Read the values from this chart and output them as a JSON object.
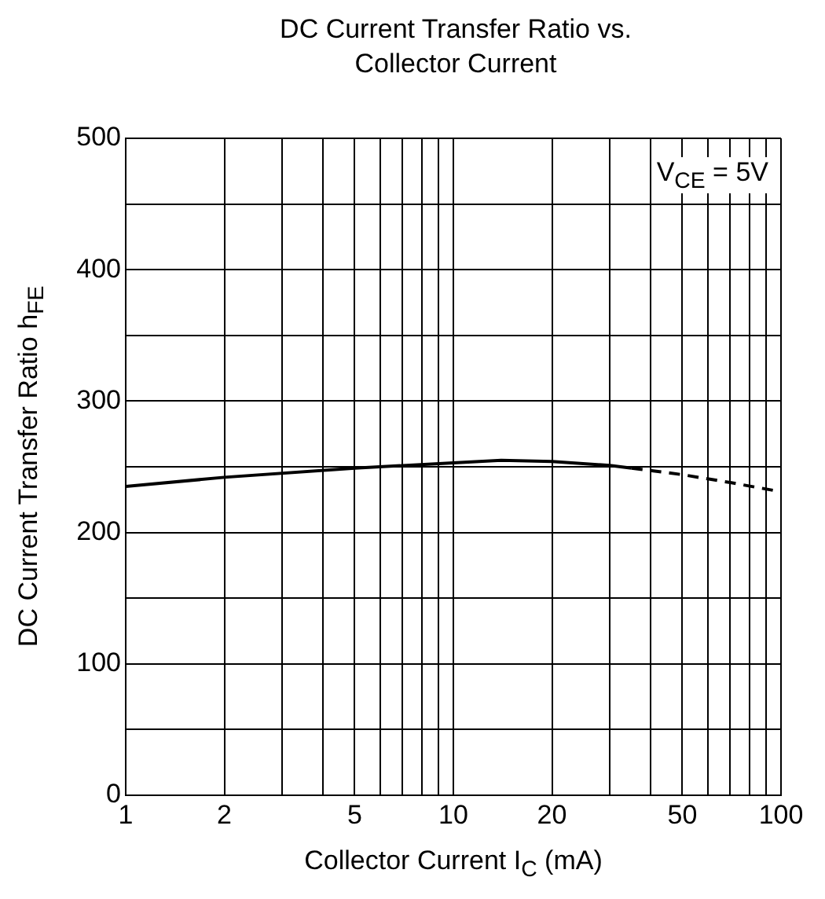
{
  "chart_data": {
    "type": "line",
    "title": "DC Current Transfer Ratio vs. Collector Current",
    "xlabel": "Collector Current  I$_{C}$ (mA)",
    "ylabel": "DC Current Transfer Ratio  h$_{FE}$",
    "annotations": [
      "V$_{CE}$ = 5V"
    ],
    "log": "x",
    "grid": true,
    "marker": "none",
    "xlim": [
      1,
      100
    ],
    "xticks": [
      1,
      2,
      {
        "value": 3,
        "label": null
      },
      {
        "value": 4,
        "label": null
      },
      5,
      {
        "value": 6,
        "label": null
      },
      {
        "value": 7,
        "label": null
      },
      {
        "value": 8,
        "label": null
      },
      {
        "value": 9,
        "label": null
      },
      10,
      20,
      {
        "value": 30,
        "label": null
      },
      {
        "value": 40,
        "label": null
      },
      50,
      {
        "value": 60,
        "label": null
      },
      {
        "value": 70,
        "label": null
      },
      {
        "value": 80,
        "label": null
      },
      {
        "value": 90,
        "label": null
      },
      100
    ],
    "ylim": [
      0,
      500
    ],
    "yticks": [
      0,
      {
        "value": 50,
        "label": null
      },
      100,
      {
        "value": 150,
        "label": null
      },
      200,
      {
        "value": 250,
        "label": null
      },
      300,
      {
        "value": 350,
        "label": null
      },
      400,
      {
        "value": 450,
        "label": null
      },
      500
    ],
    "series": [
      {
        "color": "#000000",
        "line_style": "solid",
        "x": [
          1,
          2,
          5,
          10,
          14,
          20,
          30,
          35
        ],
        "values": [
          235,
          242,
          249,
          253,
          255,
          254,
          251,
          249
        ]
      },
      {
        "color": "#000000",
        "line_style": "dashed",
        "x": [
          35,
          50,
          70,
          100
        ],
        "values": [
          249,
          244,
          238,
          231
        ]
      }
    ]
  }
}
